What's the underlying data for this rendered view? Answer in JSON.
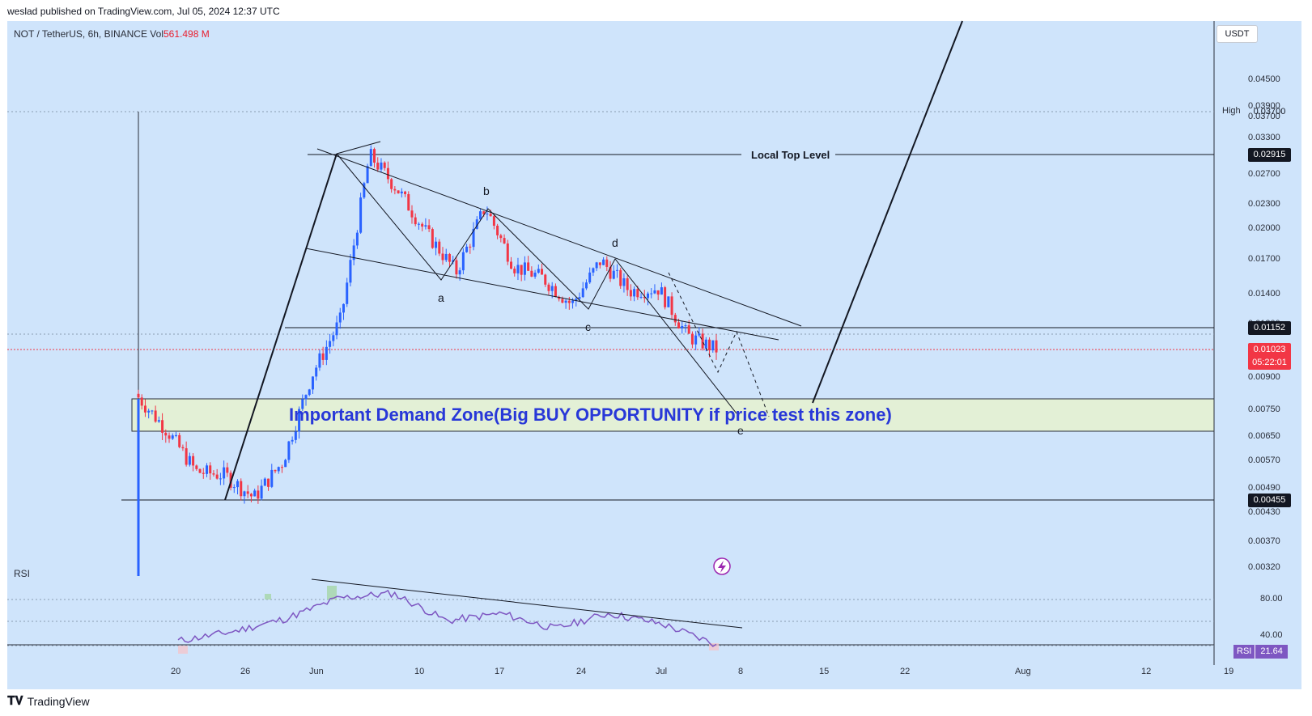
{
  "header": {
    "publisher": "weslad published on TradingView.com, Jul 05, 2024 12:37 UTC"
  },
  "symbol": {
    "title": "NOT / TetherUS, 6h, BINANCE",
    "vol_label": "Vol",
    "vol_value": "561.498 M"
  },
  "price_axis": {
    "currency": "USDT",
    "ticks": [
      "0.04500",
      "0.03900",
      "0.03700",
      "0.03300",
      "0.02700",
      "0.02300",
      "0.02000",
      "0.01700",
      "0.01400",
      "0.01200",
      "0.00900",
      "0.00750",
      "0.00650",
      "0.00570",
      "0.00490",
      "0.00430",
      "0.00370",
      "0.00320"
    ],
    "high_label": "High",
    "high_value": "0.03700",
    "tags": {
      "local_top": "0.02915",
      "resistance": "0.01152",
      "current_price": "0.01023",
      "countdown": "05:22:01",
      "support": "0.00455"
    }
  },
  "rsi": {
    "label": "RSI",
    "ticks": [
      "80.00",
      "40.00"
    ],
    "tag_label": "RSI",
    "tag_value": "21.64",
    "color": "#7e57c2"
  },
  "time_axis": {
    "ticks": [
      "20",
      "26",
      "Jun",
      "10",
      "17",
      "24",
      "Jul",
      "8",
      "15",
      "22",
      "Aug",
      "12",
      "19"
    ]
  },
  "annotations": {
    "local_top_level": "Local Top Level",
    "demand_zone": "Important Demand Zone(Big BUY OPPORTUNITY if price test this zone)",
    "wave_a": "a",
    "wave_b": "b",
    "wave_c": "c",
    "wave_d": "d",
    "wave_e": "e"
  },
  "colors": {
    "background": "#cfe4fb",
    "up": "#2962ff",
    "down": "#f23645",
    "demand_zone": "#e3f0d6",
    "zone_text": "#2838d8",
    "current_price": "#f23645"
  },
  "footer": {
    "brand": "TradingView"
  },
  "chart_data": {
    "type": "candlestick",
    "symbol": "NOT / TetherUS",
    "timeframe": "6h",
    "exchange": "BINANCE",
    "y_scale": "log",
    "key_levels": {
      "local_top": 0.02915,
      "resistance": 0.01152,
      "current": 0.01023,
      "support": 0.00455,
      "high": 0.037
    },
    "demand_zone": [
      0.0066,
      0.0078
    ],
    "close_trend": [
      {
        "x": "May 16",
        "y": 0.0079
      },
      {
        "x": "May 18",
        "y": 0.0066
      },
      {
        "x": "May 20",
        "y": 0.0053
      },
      {
        "x": "May 23",
        "y": 0.0052
      },
      {
        "x": "May 25",
        "y": 0.0046
      },
      {
        "x": "May 27",
        "y": 0.0056
      },
      {
        "x": "May 29",
        "y": 0.0089
      },
      {
        "x": "May 31",
        "y": 0.012
      },
      {
        "x": "Jun 2",
        "y": 0.0291
      },
      {
        "x": "Jun 5",
        "y": 0.024
      },
      {
        "x": "Jun 8",
        "y": 0.019
      },
      {
        "x": "Jun 11",
        "y": 0.0155
      },
      {
        "x": "Jun 15",
        "y": 0.022
      },
      {
        "x": "Jun 18",
        "y": 0.016
      },
      {
        "x": "Jun 21",
        "y": 0.015
      },
      {
        "x": "Jun 24",
        "y": 0.013
      },
      {
        "x": "Jun 27",
        "y": 0.0165
      },
      {
        "x": "Jun 30",
        "y": 0.014
      },
      {
        "x": "Jul 2",
        "y": 0.0142
      },
      {
        "x": "Jul 4",
        "y": 0.011
      },
      {
        "x": "Jul 5",
        "y": 0.01023
      }
    ],
    "rsi_trend": [
      {
        "x": "May 16",
        "y": 26
      },
      {
        "x": "May 20",
        "y": 38
      },
      {
        "x": "May 26",
        "y": 55
      },
      {
        "x": "May 28",
        "y": 82
      },
      {
        "x": "Jun 2",
        "y": 88
      },
      {
        "x": "Jun 10",
        "y": 52
      },
      {
        "x": "Jun 15",
        "y": 62
      },
      {
        "x": "Jun 20",
        "y": 42
      },
      {
        "x": "Jun 27",
        "y": 62
      },
      {
        "x": "Jul 2",
        "y": 48
      },
      {
        "x": "Jul 5",
        "y": 21.64
      }
    ]
  }
}
